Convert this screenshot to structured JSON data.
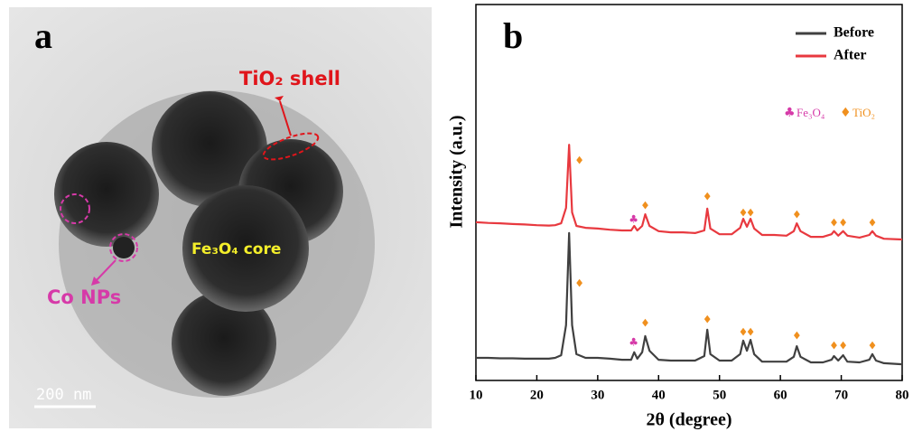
{
  "image_panel": {
    "label": "a",
    "shell_label": "TiO₂ shell",
    "core_label": "Fe₃O₄ core",
    "np_label": "Co NPs",
    "scale_bar": "200 nm"
  },
  "chart_data": {
    "type": "line",
    "panel_label": "b",
    "xlabel": "2θ (degree)",
    "ylabel": "Intensity (a.u.)",
    "xlim": [
      10,
      80
    ],
    "xticks": [
      10,
      20,
      30,
      40,
      50,
      60,
      70,
      80
    ],
    "ylim": [
      0,
      100
    ],
    "legend": "top-right",
    "x": [
      10,
      12,
      14,
      16,
      18,
      20,
      22,
      23,
      24,
      24.8,
      25.3,
      25.8,
      26.5,
      28,
      30,
      32,
      34,
      35.5,
      36,
      36.5,
      37.3,
      37.8,
      38.5,
      40,
      42,
      44,
      46,
      47.5,
      48,
      48.5,
      50,
      52,
      53.4,
      53.9,
      54.5,
      55.1,
      55.7,
      57,
      59,
      61,
      62.2,
      62.7,
      63.3,
      65,
      67,
      68.4,
      68.8,
      69.5,
      70.3,
      71,
      73,
      74.6,
      75.1,
      75.7,
      77,
      80
    ],
    "series": [
      {
        "name": "Before",
        "color": "#404040",
        "values": [
          6.0,
          6.0,
          5.9,
          5.9,
          5.8,
          5.8,
          5.8,
          6.0,
          6.7,
          14.7,
          39.2,
          14.7,
          7.0,
          6.0,
          6.0,
          5.8,
          5.5,
          5.5,
          7.5,
          5.8,
          7.5,
          11.8,
          7.9,
          5.5,
          5.3,
          5.3,
          5.3,
          6.5,
          13.5,
          7.0,
          5.3,
          5.3,
          7.0,
          10.6,
          7.9,
          10.8,
          7.0,
          5.0,
          5.0,
          5.0,
          6.3,
          9.1,
          6.3,
          4.8,
          4.8,
          5.5,
          6.5,
          5.3,
          6.7,
          5.0,
          4.8,
          5.5,
          7.0,
          5.3,
          4.6,
          4.3
        ]
      },
      {
        "name": "After",
        "color": "#e8393f",
        "values": [
          42.1,
          41.9,
          41.8,
          41.6,
          41.5,
          41.3,
          41.2,
          41.3,
          41.8,
          45.9,
          62.7,
          44.7,
          41.1,
          40.6,
          40.4,
          40.1,
          39.9,
          39.9,
          41.1,
          39.9,
          41.1,
          44.2,
          41.1,
          39.7,
          39.4,
          39.4,
          39.2,
          39.9,
          45.7,
          40.4,
          38.9,
          38.9,
          40.6,
          43.0,
          40.9,
          43.0,
          40.4,
          38.7,
          38.7,
          38.5,
          39.7,
          41.8,
          39.7,
          38.2,
          38.2,
          38.9,
          39.7,
          38.5,
          39.7,
          38.5,
          38.0,
          38.7,
          39.7,
          38.5,
          37.7,
          37.5
        ]
      }
    ],
    "markers": [
      {
        "name": "Fe₃O₄",
        "symbol": "♣",
        "color": "#d63aa8",
        "x": [
          35.9
        ],
        "y_after": [
          42.8
        ],
        "y_before": [
          10.1
        ]
      },
      {
        "name": "TiO₂",
        "symbol": "♦",
        "color": "#f0901e",
        "x": [
          27,
          37.8,
          48,
          53.9,
          55.1,
          62.7,
          68.8,
          70.3,
          75.1
        ],
        "y_after": [
          58.4,
          46.4,
          48.8,
          44.5,
          44.5,
          44.0,
          41.8,
          41.8,
          41.8
        ],
        "y_before": [
          25.7,
          15.1,
          16.1,
          12.7,
          12.7,
          11.8,
          9.1,
          9.1,
          9.1
        ]
      }
    ]
  }
}
